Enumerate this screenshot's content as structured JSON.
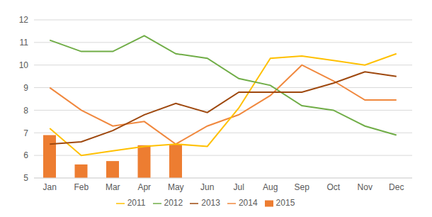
{
  "chart_data": {
    "type": "line",
    "categories": [
      "Jan",
      "Feb",
      "Mar",
      "Apr",
      "May",
      "Jun",
      "Jul",
      "Aug",
      "Sep",
      "Oct",
      "Nov",
      "Dec"
    ],
    "series": [
      {
        "name": "2015",
        "type": "bar",
        "color": "#ed7d31",
        "values": [
          6.9,
          5.6,
          5.75,
          6.45,
          6.5,
          null,
          null,
          null,
          null,
          null,
          null,
          null
        ]
      },
      {
        "name": "2014",
        "type": "line",
        "color": "#f0883e",
        "values": [
          9.0,
          8.0,
          7.3,
          7.5,
          6.5,
          7.3,
          7.8,
          8.65,
          10.0,
          9.3,
          8.45,
          8.45
        ]
      },
      {
        "name": "2011",
        "type": "line",
        "color": "#ffc000",
        "values": [
          7.2,
          6.0,
          6.2,
          6.4,
          6.5,
          6.4,
          8.1,
          10.3,
          10.4,
          10.2,
          10.0,
          10.5
        ]
      },
      {
        "name": "2012",
        "type": "line",
        "color": "#70ad47",
        "values": [
          11.1,
          10.6,
          10.6,
          11.3,
          10.5,
          10.3,
          9.4,
          9.1,
          8.2,
          8.0,
          7.3,
          6.9
        ]
      },
      {
        "name": "2013",
        "type": "line",
        "color": "#9e480e",
        "values": [
          6.5,
          6.6,
          7.1,
          7.8,
          8.3,
          7.9,
          8.8,
          8.8,
          8.8,
          9.2,
          9.7,
          9.5
        ]
      }
    ],
    "ylim": [
      5,
      12
    ],
    "yticks": [
      5,
      6,
      7,
      8,
      9,
      10,
      11,
      12
    ],
    "grid": true,
    "legend": "bottom"
  }
}
